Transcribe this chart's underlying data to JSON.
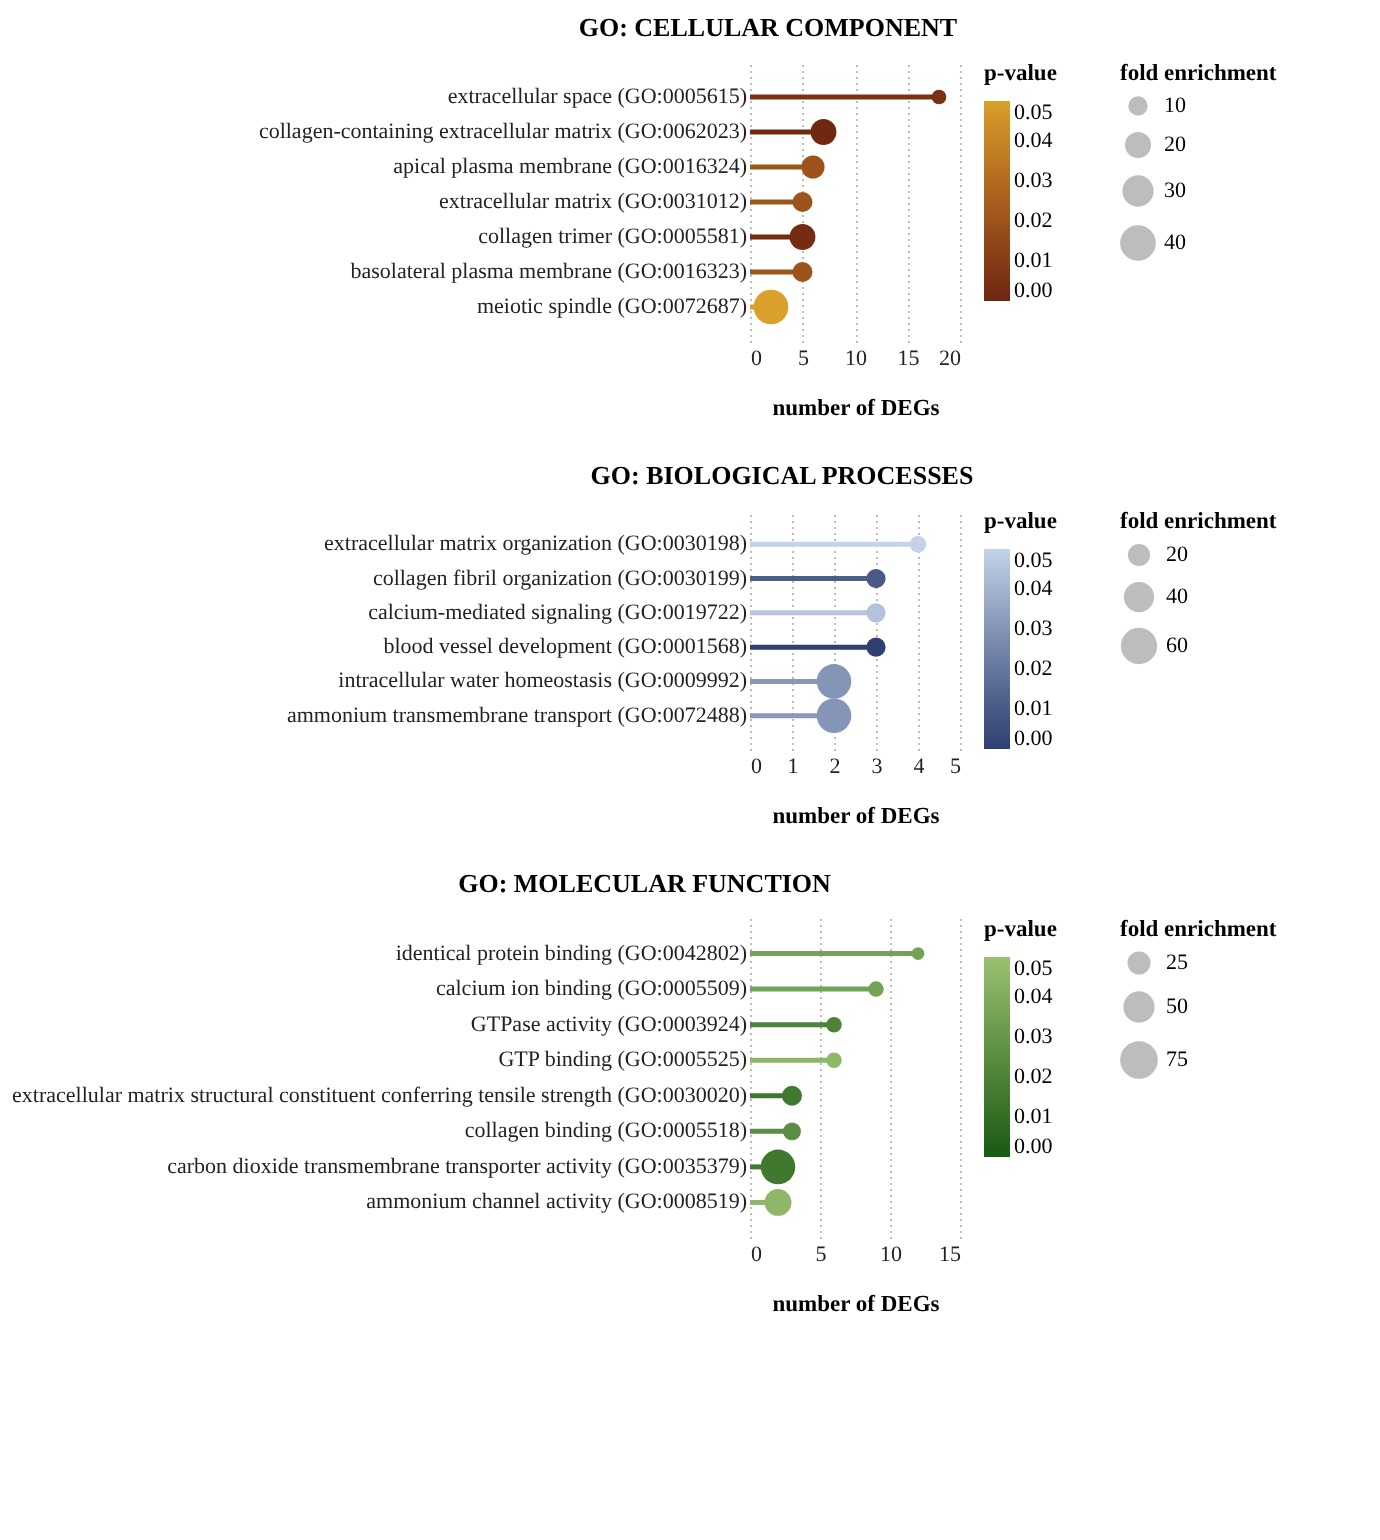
{
  "chart_data": [
    {
      "type": "lollipop",
      "orientation": "horizontal",
      "title": "GO: CELLULAR COMPONENT",
      "xlabel": "number of DEGs",
      "clabel": "p-value",
      "legend_title": "fold enrichment",
      "categories": [
        "extracellular space (GO:0005615)",
        "collagen-containing extracellular matrix (GO:0062023)",
        "apical plasma membrane (GO:0016324)",
        "extracellular matrix (GO:0031012)",
        "collagen trimer (GO:0005581)",
        "basolateral plasma membrane (GO:0016323)",
        "meiotic spindle (GO:0072687)"
      ],
      "values": [
        18,
        7,
        6,
        5,
        5,
        5,
        2
      ],
      "cvalues": [
        0.005,
        0.001,
        0.02,
        0.02,
        0.003,
        0.02,
        0.05
      ],
      "colors": [
        "#793213",
        "#702811",
        "#99571b",
        "#99571b",
        "#742d12",
        "#99571b",
        "#d9a02b"
      ],
      "sizes": [
        8,
        25,
        20,
        15,
        25,
        15,
        45
      ],
      "size_legend": [
        10,
        20,
        30,
        40
      ],
      "clim": [
        0,
        0.05
      ],
      "cticks": [
        {
          "value": 0,
          "label": "0.00"
        },
        {
          "value": 0.01,
          "label": "0.01"
        },
        {
          "value": 0.02,
          "label": "0.02"
        },
        {
          "value": 0.03,
          "label": "0.03"
        },
        {
          "value": 0.04,
          "label": "0.04"
        },
        {
          "value": 0.05,
          "label": "0.05"
        }
      ],
      "xlim": [
        0,
        20
      ],
      "xticks": [
        0,
        5,
        10,
        15,
        20
      ],
      "grid": "x"
    },
    {
      "type": "lollipop",
      "orientation": "horizontal",
      "title": "GO: BIOLOGICAL PROCESSES",
      "xlabel": "number of DEGs",
      "clabel": "p-value",
      "legend_title": "fold enrichment",
      "categories": [
        "extracellular matrix organization (GO:0030198)",
        "collagen fibril organization (GO:0030199)",
        "calcium-mediated signaling (GO:0019722)",
        "blood vessel development (GO:0001568)",
        "intracellular water homeostasis (GO:0009992)",
        "ammonium transmembrane transport (GO:0072488)"
      ],
      "values": [
        4,
        3,
        3,
        3,
        2,
        2
      ],
      "cvalues": [
        0.05,
        0.01,
        0.045,
        0.0,
        0.03,
        0.03
      ],
      "colors": [
        "#c5d3e8",
        "#4c5d88",
        "#b6c4dc",
        "#2e3f70",
        "#8998b8",
        "#8998b8"
      ],
      "sizes": [
        15,
        20,
        20,
        20,
        65,
        65
      ],
      "size_legend": [
        20,
        40,
        60
      ],
      "clim": [
        0,
        0.05
      ],
      "cticks": [
        {
          "value": 0,
          "label": "0.00"
        },
        {
          "value": 0.01,
          "label": "0.01"
        },
        {
          "value": 0.02,
          "label": "0.02"
        },
        {
          "value": 0.03,
          "label": "0.03"
        },
        {
          "value": 0.04,
          "label": "0.04"
        },
        {
          "value": 0.05,
          "label": "0.05"
        }
      ],
      "xlim": [
        0,
        5
      ],
      "xticks": [
        0,
        1,
        2,
        3,
        4,
        5
      ],
      "grid": "x"
    },
    {
      "type": "lollipop",
      "orientation": "horizontal",
      "title": "GO: MOLECULAR FUNCTION",
      "xlabel": "number of DEGs",
      "clabel": "p-value",
      "legend_title": "fold enrichment",
      "categories": [
        "identical protein binding (GO:0042802)",
        "calcium ion binding (GO:0005509)",
        "GTPase activity (GO:0003924)",
        "GTP binding (GO:0005525)",
        "extracellular matrix structural constituent conferring tensile strength (GO:0030020)",
        "collagen binding (GO:0005518)",
        "carbon dioxide transmembrane transporter activity (GO:0035379)",
        "ammonium channel activity (GO:0008519)"
      ],
      "values": [
        12,
        9,
        6,
        6,
        3,
        3,
        2,
        2
      ],
      "cvalues": [
        0.035,
        0.035,
        0.02,
        0.045,
        0.015,
        0.025,
        0.015,
        0.045
      ],
      "colors": [
        "#73a356",
        "#73a356",
        "#4b843a",
        "#8eb869",
        "#3e7930",
        "#598e43",
        "#3e7930",
        "#8eb869"
      ],
      "sizes": [
        10,
        15,
        15,
        15,
        25,
        20,
        75,
        45
      ],
      "size_legend": [
        25,
        50,
        75
      ],
      "clim": [
        0,
        0.05
      ],
      "cticks": [
        {
          "value": 0,
          "label": "0.00"
        },
        {
          "value": 0.01,
          "label": "0.01"
        },
        {
          "value": 0.02,
          "label": "0.02"
        },
        {
          "value": 0.03,
          "label": "0.03"
        },
        {
          "value": 0.04,
          "label": "0.04"
        },
        {
          "value": 0.05,
          "label": "0.05"
        }
      ],
      "xlim": [
        0,
        15
      ],
      "xticks": [
        0,
        5,
        10,
        15
      ],
      "grid": "x"
    }
  ]
}
